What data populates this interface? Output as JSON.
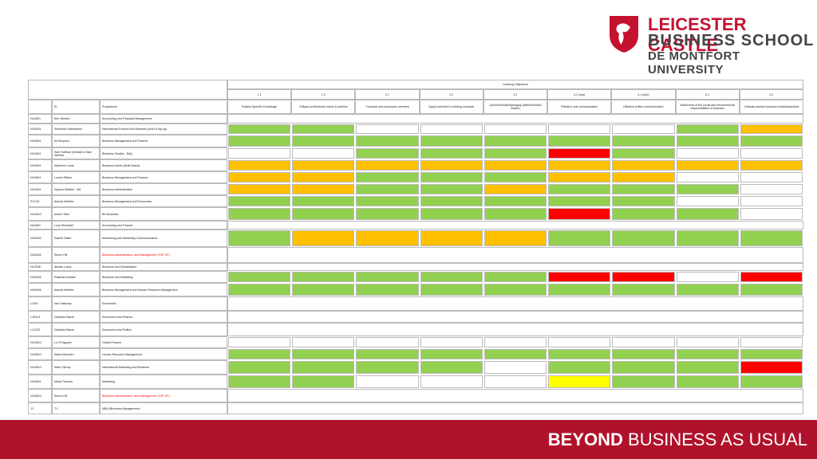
{
  "logo": {
    "line1": "LEICESTER CASTLE",
    "line2": "BUSINESS SCHOOL",
    "line3": "DE MONTFORT UNIVERSITY"
  },
  "footer": {
    "bold": "BEYOND",
    "rest": "BUSINESS AS USUAL"
  },
  "table": {
    "group_header": "Learning Objectives",
    "id_header": "ID",
    "programme_header": "Programme",
    "objective_numbers": [
      "1.1",
      "1.2",
      "2.1",
      "2.2",
      "3.1",
      "3.2 (sub)",
      "4.1 (sub)",
      "5.1",
      "5.2"
    ],
    "objective_names": [
      "Subject Specific Knowledge",
      "Critique professional norms & practice",
      "Concepts and processes overview",
      "Apply overview to existing concepts",
      "Question/challenge/apply (without/limited matter)",
      "Effective oral communication",
      "Effective written communication",
      "Awareness of the social and environmental responsibilities of business",
      "Critically assess business models/practices"
    ],
    "rows": [
      {
        "code": "NLA001",
        "name": "Kim Webber",
        "programme": "Accounting and Financial Management",
        "cells": [
          null,
          null,
          null,
          null,
          null,
          null,
          null,
          null,
          null
        ]
      },
      {
        "code": "NLM001",
        "name": "Sukeshee Mahawarni",
        "programme": "International Finance and Business (level 6 top-up)",
        "cells": [
          "#92d050",
          "#92d050",
          null,
          null,
          null,
          null,
          null,
          "#92d050",
          "#ffc000"
        ]
      },
      {
        "code": "NLM001",
        "name": "Ali Simpson",
        "programme": "Business Management and Finance",
        "cells": [
          "#92d050",
          "#92d050",
          "#92d050",
          "#92d050",
          "#92d050",
          "#92d050",
          "#92d050",
          "#92d050",
          "#92d050"
        ]
      },
      {
        "code": "NLM001",
        "name": "Sam Sullivan (Global) & Nicki Webber",
        "programme": "Business Studies - BA()",
        "cells": [
          null,
          null,
          "#92d050",
          "#92d050",
          "#92d050",
          "#ff0000",
          "#92d050",
          null,
          null
        ]
      },
      {
        "code": "NLM001",
        "name": "Adrienne Lucas",
        "programme": "Business Admin (Multi Brand)",
        "cells": [
          "#ffc000",
          "#ffc000",
          "#ffc000",
          "#ffc000",
          "#ffc000",
          "#ffc000",
          "#ffc000",
          "#ffc000",
          "#ffc000"
        ]
      },
      {
        "code": "NLM011",
        "name": "Louise Ellison",
        "programme": "Business Management and Finance",
        "cells": [
          "#ffc000",
          "#ffc000",
          "#92d050",
          "#92d050",
          "#92d050",
          "#ffc000",
          "#ffc000",
          null,
          null
        ]
      },
      {
        "code": "NLM001",
        "name": "Kallyna Webber - BA",
        "programme": "Business Administration",
        "cells": [
          "#ffc000",
          "#ffc000",
          "#92d050",
          "#92d050",
          "#ffc000",
          "#92d050",
          "#92d050",
          "#92d050",
          null
        ]
      },
      {
        "code": "PCC01",
        "name": "Adeola Webber",
        "programme": "Business Management and Economics",
        "cells": [
          "#92d050",
          "#92d050",
          "#92d050",
          "#92d050",
          "#92d050",
          "#92d050",
          "#92d050",
          null,
          null
        ]
      },
      {
        "code": "NLM010",
        "name": "Amarn Sahi",
        "programme": "BA Business",
        "cells": [
          "#92d050",
          "#92d050",
          "#92d050",
          "#92d050",
          "#92d050",
          "#ff0000",
          "#92d050",
          "#92d050",
          null
        ]
      },
      {
        "code": "NLA001",
        "name": "Lucy Woodhall",
        "programme": "Accounting and Finance",
        "cells": [
          null,
          null,
          null,
          null,
          null,
          null,
          null,
          null,
          null
        ]
      },
      {
        "code": "NLM002",
        "name": "Rachel Slater",
        "programme": "Advertising and Marketing Communications",
        "cells": [
          "#92d050",
          "#ffc000",
          "#ffc000",
          "#ffc000",
          "#ffc000",
          "#92d050",
          "#92d050",
          "#92d050",
          "#92d050"
        ]
      },
      {
        "code": "NLM026",
        "name": "Simon Hill",
        "programme": "Business Administration, and Management (TOP UP)",
        "programme_color": "#ff0000",
        "cells": [
          null,
          null,
          null,
          null,
          null,
          null,
          null,
          null,
          null
        ]
      },
      {
        "code": "NLZ038",
        "name": "Alistair Lucey",
        "programme": "Business and Globalisation",
        "cells": [
          null,
          null,
          null,
          null,
          null,
          null,
          null,
          null,
          null
        ]
      },
      {
        "code": "NLM005",
        "name": "Rashida Kaddad",
        "programme": "Business and Marketing",
        "cells": [
          "#92d050",
          "#92d050",
          "#92d050",
          "#92d050",
          "#92d050",
          "#ff0000",
          "#ff0000",
          null,
          "#ff0000"
        ]
      },
      {
        "code": "NLM005",
        "name": "Adeola Webber",
        "programme": "Business Management and Human Resource Management",
        "cells": [
          "#92d050",
          "#92d050",
          "#92d050",
          "#92d050",
          "#92d050",
          "#92d050",
          "#92d050",
          "#92d050",
          "#92d050"
        ]
      },
      {
        "code": "L1001",
        "name": "Iain Galloway",
        "programme": "Economics",
        "cells": [
          null,
          null,
          null,
          null,
          null,
          null,
          null,
          null,
          null
        ]
      },
      {
        "code": "L1B101",
        "name": "Gabriela Stavre",
        "programme": "Economics and Finance",
        "cells": [
          null,
          null,
          null,
          null,
          null,
          null,
          null,
          null,
          null
        ]
      },
      {
        "code": "L1L203",
        "name": "Gabriela Stavre",
        "programme": "Economics and Politics",
        "cells": [
          null,
          null,
          null,
          null,
          null,
          null,
          null,
          null,
          null
        ]
      },
      {
        "code": "NLM010",
        "name": "Lu Hi Nguyen",
        "programme": "Global Finance",
        "cells": [
          "#ffffff",
          "#ffffff",
          "#ffffff",
          "#ffffff",
          "#ffffff",
          "#ffffff",
          "#ffffff",
          "#ffffff",
          "#ffffff"
        ]
      },
      {
        "code": "NLM010",
        "name": "Maria Muzzeen",
        "programme": "Human Resource Management",
        "cells": [
          "#92d050",
          "#92d050",
          "#92d050",
          "#92d050",
          "#92d050",
          "#92d050",
          "#92d050",
          "#92d050",
          "#92d050"
        ]
      },
      {
        "code": "NLM010",
        "name": "Mark Glenny",
        "programme": "International Marketing and Business",
        "cells": [
          "#92d050",
          "#92d050",
          "#92d050",
          "#92d050",
          null,
          "#92d050",
          "#92d050",
          "#92d050",
          "#ff0000"
        ]
      },
      {
        "code": "NLM001",
        "name": "Maria Thomas",
        "programme": "Marketing",
        "cells": [
          "#92d050",
          "#92d050",
          null,
          null,
          null,
          "#ffff00",
          "#92d050",
          "#92d050",
          "#92d050"
        ]
      },
      {
        "code": "NLM010",
        "name": "Simon Hill",
        "programme": "Business Administration, and Management (TOP UP)",
        "programme_color": "#ff0000",
        "cells": [
          null,
          null,
          null,
          null,
          null,
          null,
          null,
          null,
          null
        ]
      },
      {
        "code": "1Y",
        "name": "TY",
        "programme": "MBA (Business Management)",
        "cells": [
          null,
          null,
          null,
          null,
          null,
          null,
          null,
          null,
          null
        ]
      }
    ]
  }
}
